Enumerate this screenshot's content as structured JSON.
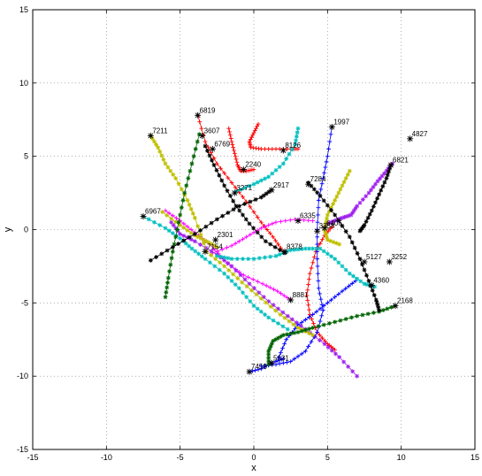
{
  "chart_data": {
    "type": "line",
    "title": "",
    "xlabel": "x",
    "ylabel": "y",
    "xlim": [
      -15,
      15
    ],
    "ylim": [
      -15,
      15
    ],
    "xticks": [
      -15,
      -10,
      -5,
      0,
      5,
      10,
      15
    ],
    "yticks": [
      -15,
      -10,
      -5,
      0,
      5,
      10,
      15
    ],
    "grid": true,
    "grid_style": "dotted",
    "series": [
      {
        "color": "#ff0000",
        "marker": "+",
        "values": [
          [
            -1.7,
            6.9
          ],
          [
            -1.5,
            6.0
          ],
          [
            -1.3,
            5.2
          ],
          [
            -1.1,
            4.4
          ],
          [
            -0.9,
            4.0
          ],
          [
            -0.5,
            4.0
          ],
          [
            0.0,
            4.1
          ]
        ]
      },
      {
        "color": "#ff0000",
        "marker": "+",
        "values": [
          [
            0.3,
            7.2
          ],
          [
            0.0,
            6.6
          ],
          [
            -0.3,
            6.0
          ],
          [
            -0.2,
            5.6
          ],
          [
            0.5,
            5.5
          ],
          [
            1.5,
            5.5
          ],
          [
            2.5,
            5.5
          ],
          [
            3.0,
            5.5
          ]
        ]
      },
      {
        "color": "#ff0000",
        "marker": "+",
        "values": [
          [
            -3.8,
            7.8
          ],
          [
            -3.3,
            6.0
          ],
          [
            -2.5,
            4.5
          ],
          [
            -1.5,
            3.2
          ],
          [
            -0.5,
            1.9
          ],
          [
            0.5,
            0.5
          ],
          [
            1.3,
            -0.5
          ],
          [
            2.0,
            -1.5
          ]
        ]
      },
      {
        "color": "#ff0000",
        "marker": "+",
        "values": [
          [
            5.3,
            0.2
          ],
          [
            4.8,
            -0.4
          ],
          [
            4.2,
            -1.5
          ],
          [
            3.8,
            -3.0
          ],
          [
            3.6,
            -4.5
          ],
          [
            3.8,
            -5.8
          ],
          [
            4.3,
            -7.0
          ],
          [
            5.0,
            -7.8
          ],
          [
            5.5,
            -8.2
          ]
        ]
      },
      {
        "color": "#ff00ff",
        "marker": "+",
        "values": [
          [
            -2.8,
            -1.6
          ],
          [
            -1.5,
            -1.1
          ],
          [
            -0.5,
            -0.5
          ],
          [
            0.5,
            0.1
          ],
          [
            1.5,
            0.5
          ],
          [
            2.8,
            0.7
          ],
          [
            4.0,
            0.6
          ]
        ]
      },
      {
        "color": "#ff00ff",
        "marker": "+",
        "values": [
          [
            -6.0,
            1.3
          ],
          [
            -5.0,
            0.6
          ],
          [
            -4.0,
            -0.2
          ],
          [
            -3.0,
            -1.0
          ],
          [
            -1.8,
            -2.3
          ],
          [
            -0.7,
            -3.1
          ],
          [
            0.6,
            -3.7
          ],
          [
            1.6,
            -4.2
          ],
          [
            2.5,
            -4.8
          ]
        ]
      },
      {
        "color": "#a020f0",
        "marker": "*",
        "values": [
          [
            -5.6,
            0.5
          ],
          [
            -5.0,
            -0.3
          ],
          [
            -4.0,
            -0.8
          ],
          [
            -2.5,
            -1.7
          ],
          [
            -1.5,
            -2.5
          ],
          [
            -0.3,
            -3.7
          ],
          [
            1.0,
            -4.9
          ],
          [
            2.3,
            -5.9
          ],
          [
            3.5,
            -6.8
          ],
          [
            4.8,
            -7.8
          ],
          [
            5.8,
            -8.7
          ],
          [
            7.0,
            -10.0
          ]
        ]
      },
      {
        "color": "#a020f0",
        "marker": "*",
        "values": [
          [
            5.0,
            0.4
          ],
          [
            5.5,
            0.6
          ],
          [
            6.0,
            0.8
          ],
          [
            6.6,
            1.0
          ],
          [
            7.0,
            1.6
          ],
          [
            7.8,
            2.5
          ],
          [
            8.4,
            3.3
          ],
          [
            9.0,
            4.0
          ],
          [
            9.4,
            4.5
          ]
        ]
      },
      {
        "color": "#0000ff",
        "marker": "+",
        "values": [
          [
            5.3,
            7.0
          ],
          [
            5.0,
            5.0
          ],
          [
            4.7,
            3.5
          ],
          [
            4.4,
            2.0
          ],
          [
            4.3,
            0.0
          ],
          [
            4.3,
            -2.0
          ],
          [
            4.4,
            -4.0
          ],
          [
            4.7,
            -5.5
          ],
          [
            4.3,
            -7.0
          ],
          [
            3.5,
            -8.3
          ],
          [
            2.5,
            -9.0
          ],
          [
            1.5,
            -9.2
          ],
          [
            0.5,
            -9.3
          ]
        ]
      },
      {
        "color": "#0000ff",
        "marker": "+",
        "values": [
          [
            -0.3,
            -9.7
          ],
          [
            0.5,
            -9.5
          ],
          [
            1.5,
            -9.0
          ],
          [
            2.0,
            -8.8
          ]
        ]
      },
      {
        "color": "#0000ff",
        "marker": "+",
        "values": [
          [
            6.9,
            -3.5
          ],
          [
            6.0,
            -4.2
          ],
          [
            5.0,
            -5.0
          ],
          [
            4.0,
            -5.8
          ],
          [
            3.0,
            -6.5
          ],
          [
            2.2,
            -7.5
          ],
          [
            1.7,
            -8.7
          ]
        ]
      },
      {
        "color": "#00bfbf",
        "marker": "*",
        "values": [
          [
            3.0,
            6.9
          ],
          [
            2.8,
            5.8
          ],
          [
            2.0,
            4.5
          ],
          [
            1.0,
            3.6
          ],
          [
            0.0,
            3.1
          ],
          [
            -1.2,
            2.6
          ]
        ]
      },
      {
        "color": "#00bfbf",
        "marker": "*",
        "values": [
          [
            -7.5,
            0.9
          ],
          [
            -6.0,
            0.1
          ],
          [
            -5.0,
            -0.6
          ],
          [
            -4.2,
            -1.3
          ],
          [
            -3.3,
            -2.0
          ],
          [
            -2.0,
            -3.0
          ],
          [
            -1.0,
            -4.0
          ],
          [
            0.0,
            -5.2
          ],
          [
            1.0,
            -6.0
          ],
          [
            2.3,
            -6.8
          ]
        ]
      },
      {
        "color": "#00bfbf",
        "marker": "*",
        "values": [
          [
            -2.5,
            -1.8
          ],
          [
            -1.5,
            -2.0
          ],
          [
            0.0,
            -2.0
          ],
          [
            1.5,
            -1.8
          ],
          [
            2.5,
            -1.4
          ],
          [
            3.5,
            -1.3
          ],
          [
            4.5,
            -1.3
          ],
          [
            5.5,
            -2.0
          ],
          [
            6.5,
            -3.0
          ],
          [
            7.5,
            -3.7
          ],
          [
            8.2,
            -3.9
          ]
        ]
      },
      {
        "color": "#bfbf00",
        "marker": "*",
        "values": [
          [
            -7.0,
            6.4
          ],
          [
            -6.5,
            5.6
          ],
          [
            -6.0,
            4.5
          ],
          [
            -5.3,
            3.5
          ],
          [
            -4.5,
            2.0
          ],
          [
            -4.0,
            0.8
          ],
          [
            -3.2,
            -1.5
          ],
          [
            -2.0,
            -2.5
          ],
          [
            -0.8,
            -3.6
          ],
          [
            0.5,
            -4.7
          ],
          [
            1.8,
            -5.8
          ],
          [
            3.0,
            -6.7
          ],
          [
            4.0,
            -7.2
          ]
        ]
      },
      {
        "color": "#bfbf00",
        "marker": "*",
        "values": [
          [
            6.5,
            4.0
          ],
          [
            6.0,
            3.0
          ],
          [
            5.5,
            2.0
          ],
          [
            5.0,
            1.0
          ],
          [
            4.8,
            0.0
          ],
          [
            5.0,
            -0.7
          ],
          [
            5.8,
            -1.0
          ]
        ]
      },
      {
        "color": "#bfbf00",
        "marker": "*",
        "values": [
          [
            -6.2,
            1.2
          ],
          [
            -5.0,
            0.3
          ],
          [
            -4.0,
            -0.4
          ],
          [
            -3.2,
            -0.8
          ],
          [
            -2.5,
            -1.2
          ]
        ]
      },
      {
        "color": "#006400",
        "marker": "*",
        "values": [
          [
            -3.7,
            6.5
          ],
          [
            -4.2,
            4.5
          ],
          [
            -4.7,
            2.5
          ],
          [
            -5.1,
            0.5
          ],
          [
            -5.5,
            -1.5
          ],
          [
            -5.8,
            -3.3
          ],
          [
            -6.0,
            -4.6
          ]
        ]
      },
      {
        "color": "#006400",
        "marker": "*",
        "values": [
          [
            9.6,
            -5.2
          ],
          [
            8.5,
            -5.6
          ],
          [
            7.0,
            -5.9
          ],
          [
            5.5,
            -6.3
          ],
          [
            4.0,
            -6.7
          ],
          [
            3.0,
            -7.0
          ],
          [
            2.0,
            -7.2
          ],
          [
            1.3,
            -7.6
          ],
          [
            1.0,
            -8.3
          ],
          [
            1.0,
            -9.2
          ]
        ]
      },
      {
        "color": "#000000",
        "marker": "*",
        "values": [
          [
            -7.0,
            -2.1
          ],
          [
            -5.5,
            -1.2
          ],
          [
            -4.0,
            -0.3
          ],
          [
            -2.5,
            0.7
          ],
          [
            -1.0,
            1.6
          ],
          [
            0.5,
            2.2
          ],
          [
            1.2,
            2.7
          ]
        ]
      },
      {
        "color": "#000000",
        "marker": "*",
        "values": [
          [
            3.7,
            3.2
          ],
          [
            4.5,
            2.3
          ],
          [
            5.5,
            1.0
          ],
          [
            6.5,
            -0.5
          ],
          [
            7.2,
            -2.0
          ],
          [
            7.8,
            -3.5
          ],
          [
            8.3,
            -4.8
          ],
          [
            8.5,
            -5.5
          ]
        ]
      },
      {
        "color": "#000000",
        "marker": "*",
        "values": [
          [
            -3.3,
            5.7
          ],
          [
            -2.7,
            4.4
          ],
          [
            -2.0,
            3.0
          ],
          [
            -1.2,
            1.6
          ],
          [
            -0.3,
            0.4
          ],
          [
            0.8,
            -0.8
          ],
          [
            2.1,
            -1.6
          ]
        ]
      },
      {
        "color": "#000000",
        "marker": "*",
        "values": [
          [
            9.3,
            4.4
          ],
          [
            9.0,
            3.5
          ],
          [
            8.5,
            2.4
          ],
          [
            8.0,
            1.3
          ],
          [
            7.5,
            0.3
          ],
          [
            7.2,
            -0.1
          ]
        ]
      }
    ],
    "endpoints": [
      {
        "label": "6819",
        "x": -3.8,
        "y": 7.8
      },
      {
        "label": "3607",
        "x": -3.5,
        "y": 6.4
      },
      {
        "label": "7211",
        "x": -7.0,
        "y": 6.4
      },
      {
        "label": "6769",
        "x": -2.8,
        "y": 5.5
      },
      {
        "label": "8126",
        "x": 2.0,
        "y": 5.4
      },
      {
        "label": "2240",
        "x": -0.7,
        "y": 4.1
      },
      {
        "label": "1997",
        "x": 5.3,
        "y": 7.0
      },
      {
        "label": "4827",
        "x": 10.6,
        "y": 6.2
      },
      {
        "label": "6821",
        "x": 9.3,
        "y": 4.4
      },
      {
        "label": "2917",
        "x": 1.2,
        "y": 2.7
      },
      {
        "label": "3271",
        "x": -1.3,
        "y": 2.5
      },
      {
        "label": "7284",
        "x": 3.7,
        "y": 3.1
      },
      {
        "label": "6967",
        "x": -7.5,
        "y": 0.9
      },
      {
        "label": "6335",
        "x": 3.0,
        "y": 0.6
      },
      {
        "label": "6406",
        "x": 4.8,
        "y": 0.1
      },
      {
        "label": "3358",
        "x": 4.3,
        "y": -0.1
      },
      {
        "label": "2301",
        "x": -2.6,
        "y": -0.7
      },
      {
        "label": "7154",
        "x": -3.3,
        "y": -1.5
      },
      {
        "label": "8378",
        "x": 2.1,
        "y": -1.5
      },
      {
        "label": "5127",
        "x": 7.5,
        "y": -2.2
      },
      {
        "label": "3252",
        "x": 9.2,
        "y": -2.2
      },
      {
        "label": "4360",
        "x": 8.0,
        "y": -3.8
      },
      {
        "label": "8881",
        "x": 2.5,
        "y": -4.8
      },
      {
        "label": "2168",
        "x": 9.6,
        "y": -5.2
      },
      {
        "label": "5631",
        "x": 1.2,
        "y": -9.1
      },
      {
        "label": "7458",
        "x": -0.3,
        "y": -9.7
      }
    ]
  }
}
